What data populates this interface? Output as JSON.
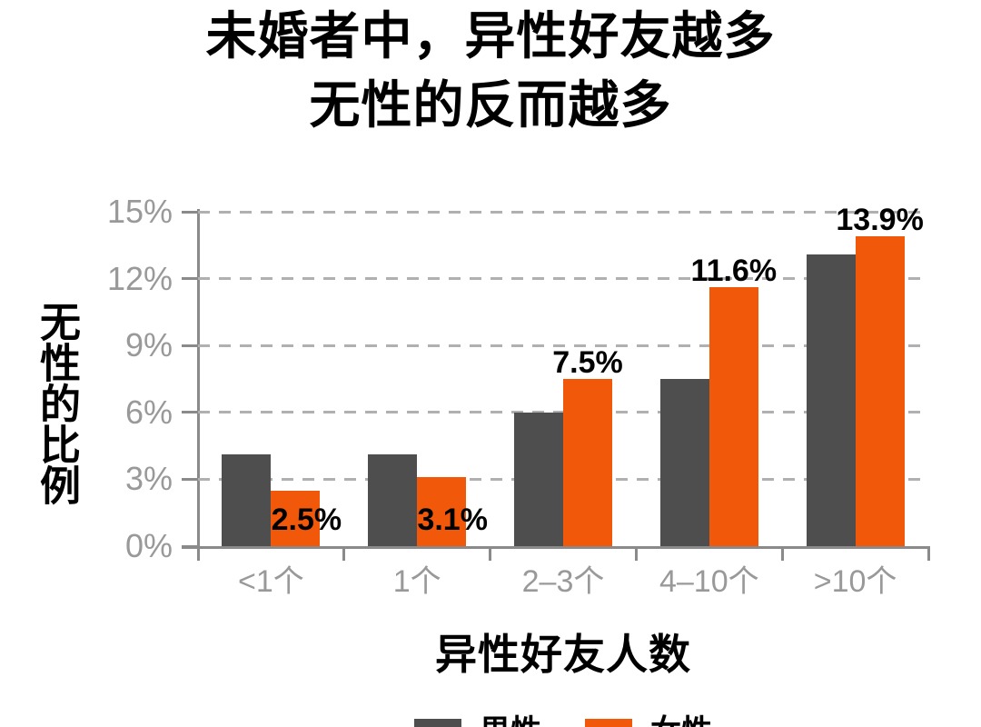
{
  "title": {
    "line1": "未婚者中，异性好友越多",
    "line2": "无性的反而越多"
  },
  "chart_data": {
    "type": "bar",
    "title": "未婚者中，异性好友越多 无性的反而越多",
    "categories": [
      "<1个",
      "1个",
      "2–3个",
      "4–10个",
      ">10个"
    ],
    "series": [
      {
        "name": "男性",
        "color": "#4F4E4E",
        "values": [
          4.1,
          4.1,
          6.0,
          7.5,
          13.1
        ],
        "labels_shown": false
      },
      {
        "name": "女性",
        "color": "#F2580A",
        "values": [
          2.5,
          3.1,
          7.5,
          11.6,
          13.9
        ],
        "labels_shown": true,
        "value_labels": [
          "2.5%",
          "3.1%",
          "7.5%",
          "11.6%",
          "13.9%"
        ],
        "label_positions": [
          "inside",
          "inside",
          "above",
          "above",
          "above"
        ]
      }
    ],
    "xlabel": "异性好友人数",
    "ylabel": "无性的比例",
    "ylim": [
      0,
      15
    ],
    "yticks": [
      "0%",
      "3%",
      "6%",
      "9%",
      "12%",
      "15%"
    ],
    "ytick_values": [
      0,
      3,
      6,
      9,
      12,
      15
    ],
    "grid": "dashed-horizontal",
    "legend_position": "bottom-center",
    "colors": {
      "background": "#FFFFFF",
      "text": "#000000",
      "axis": "#8A8A8A",
      "grid": "#B0B0B0",
      "tick_text": "#999999"
    }
  }
}
